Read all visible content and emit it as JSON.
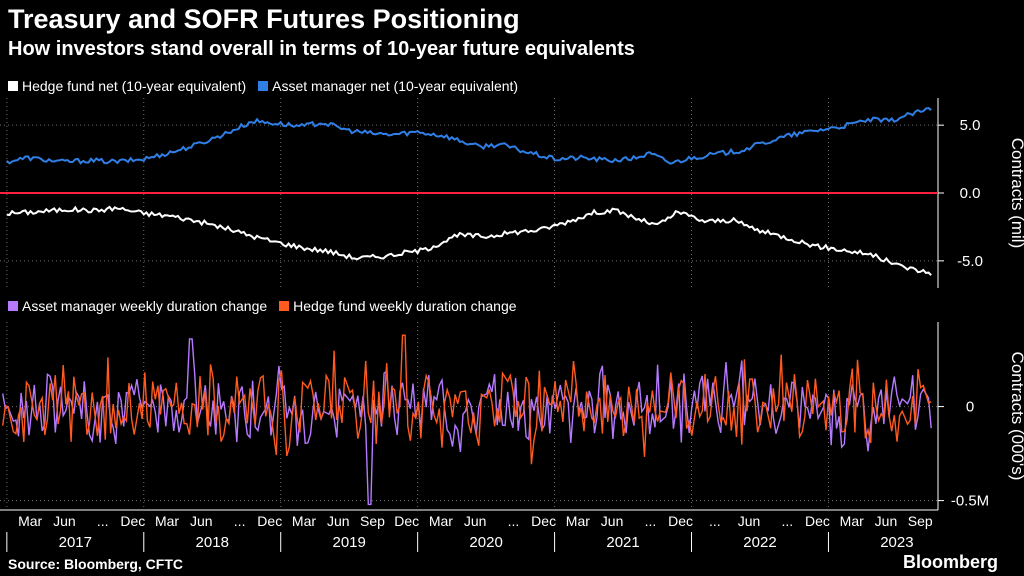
{
  "title": "Treasury and SOFR Futures Positioning",
  "subtitle": "How investors stand overall in terms of 10-year future equivalents",
  "source": "Source: Bloomberg, CFTC",
  "brand": "Bloomberg",
  "colors": {
    "hedge_fund_net": "#ffffff",
    "asset_manager_net": "#2f7fe6",
    "asset_manager_weekly": "#b57aff",
    "hedge_fund_weekly": "#ff5a1f",
    "zero_line": "#ff1f3d",
    "grid": "#6e6e6e"
  },
  "chart_data": [
    {
      "type": "line",
      "ylabel": "Contracts (mil)",
      "ylim": [
        -7,
        7
      ],
      "yticks": [
        5,
        0,
        -5
      ],
      "ytick_labels": [
        "5.0",
        "0.0",
        "-5.0"
      ],
      "xlim": [
        2016.95,
        2023.8
      ],
      "legend": [
        "Hedge fund net (10-year equivalent)",
        "Asset manager net (10-year equivalent)"
      ],
      "legend_placement": "top-left",
      "grid": true,
      "series": [
        {
          "name": "Hedge fund net (10-year equivalent)",
          "x": [
            2017.0,
            2017.2,
            2017.45,
            2017.65,
            2017.8,
            2018.0,
            2018.2,
            2018.4,
            2018.6,
            2018.8,
            2019.0,
            2019.2,
            2019.35,
            2019.55,
            2019.7,
            2019.8,
            2019.9,
            2020.05,
            2020.3,
            2020.5,
            2020.7,
            2020.9,
            2021.1,
            2021.3,
            2021.45,
            2021.6,
            2021.75,
            2021.9,
            2022.1,
            2022.3,
            2022.5,
            2022.7,
            2022.9,
            2023.1,
            2023.3,
            2023.5,
            2023.65,
            2023.75
          ],
          "y": [
            -1.5,
            -1.4,
            -1.2,
            -1.3,
            -1.1,
            -1.5,
            -1.7,
            -2.1,
            -2.6,
            -3.2,
            -3.7,
            -4.1,
            -4.3,
            -4.8,
            -4.7,
            -4.6,
            -4.4,
            -4.2,
            -3.1,
            -3.2,
            -2.9,
            -2.7,
            -2.1,
            -1.4,
            -1.3,
            -1.9,
            -2.4,
            -1.4,
            -2.1,
            -2.0,
            -2.8,
            -3.3,
            -3.9,
            -4.2,
            -4.5,
            -5.3,
            -5.7,
            -5.9
          ]
        },
        {
          "name": "Asset manager net (10-year equivalent)",
          "x": [
            2017.0,
            2017.15,
            2017.4,
            2017.6,
            2017.8,
            2018.0,
            2018.2,
            2018.4,
            2018.6,
            2018.8,
            2019.0,
            2019.15,
            2019.3,
            2019.5,
            2019.65,
            2019.8,
            2020.0,
            2020.2,
            2020.45,
            2020.6,
            2020.8,
            2021.0,
            2021.2,
            2021.4,
            2021.55,
            2021.7,
            2021.85,
            2022.0,
            2022.2,
            2022.35,
            2022.5,
            2022.7,
            2022.9,
            2023.1,
            2023.3,
            2023.45,
            2023.6,
            2023.75
          ],
          "y": [
            2.3,
            2.6,
            2.3,
            2.4,
            2.3,
            2.5,
            3.0,
            3.6,
            4.4,
            5.3,
            5.1,
            4.9,
            5.2,
            4.6,
            4.4,
            4.3,
            4.5,
            4.2,
            3.4,
            3.6,
            3.0,
            2.5,
            2.6,
            2.4,
            2.5,
            2.9,
            2.2,
            2.6,
            2.9,
            3.1,
            3.6,
            4.2,
            4.6,
            4.9,
            5.4,
            5.3,
            5.8,
            6.2
          ]
        }
      ],
      "reference_line": 0
    },
    {
      "type": "line",
      "ylabel": "Contracts (000's)",
      "ylim": [
        -0.55,
        0.45
      ],
      "yticks": [
        0,
        -0.5
      ],
      "ytick_labels": [
        "0",
        "-0.5M"
      ],
      "xlim": [
        2016.95,
        2023.8
      ],
      "legend": [
        "Asset manager weekly duration change",
        "Hedge fund weekly duration change"
      ],
      "legend_placement": "top-left",
      "grid": true,
      "series": [
        {
          "name": "Asset manager weekly duration change",
          "amplitude": 0.13,
          "seed": 17
        },
        {
          "name": "Hedge fund weekly duration change",
          "amplitude": 0.16,
          "seed": 53
        }
      ]
    }
  ],
  "x_axis": {
    "month_labels": [
      {
        "label": "Mar",
        "x": 2017.17
      },
      {
        "label": "Jun",
        "x": 2017.42
      },
      {
        "label": "...",
        "x": 2017.7
      },
      {
        "label": "Dec",
        "x": 2017.92
      },
      {
        "label": "Mar",
        "x": 2018.17
      },
      {
        "label": "Jun",
        "x": 2018.42
      },
      {
        "label": "...",
        "x": 2018.7
      },
      {
        "label": "Dec",
        "x": 2018.92
      },
      {
        "label": "Mar",
        "x": 2019.17
      },
      {
        "label": "Jun",
        "x": 2019.42
      },
      {
        "label": "Sep",
        "x": 2019.67
      },
      {
        "label": "Dec",
        "x": 2019.92
      },
      {
        "label": "Mar",
        "x": 2020.17
      },
      {
        "label": "Jun",
        "x": 2020.42
      },
      {
        "label": "...",
        "x": 2020.7
      },
      {
        "label": "Dec",
        "x": 2020.92
      },
      {
        "label": "Mar",
        "x": 2021.17
      },
      {
        "label": "Jun",
        "x": 2021.42
      },
      {
        "label": "...",
        "x": 2021.7
      },
      {
        "label": "Dec",
        "x": 2021.92
      },
      {
        "label": "...",
        "x": 2022.17
      },
      {
        "label": "Jun",
        "x": 2022.42
      },
      {
        "label": "...",
        "x": 2022.7
      },
      {
        "label": "Dec",
        "x": 2022.92
      },
      {
        "label": "Mar",
        "x": 2023.17
      },
      {
        "label": "Jun",
        "x": 2023.42
      },
      {
        "label": "Sep",
        "x": 2023.67
      }
    ],
    "years": [
      "2017",
      "2018",
      "2019",
      "2020",
      "2021",
      "2022",
      "2023"
    ]
  }
}
